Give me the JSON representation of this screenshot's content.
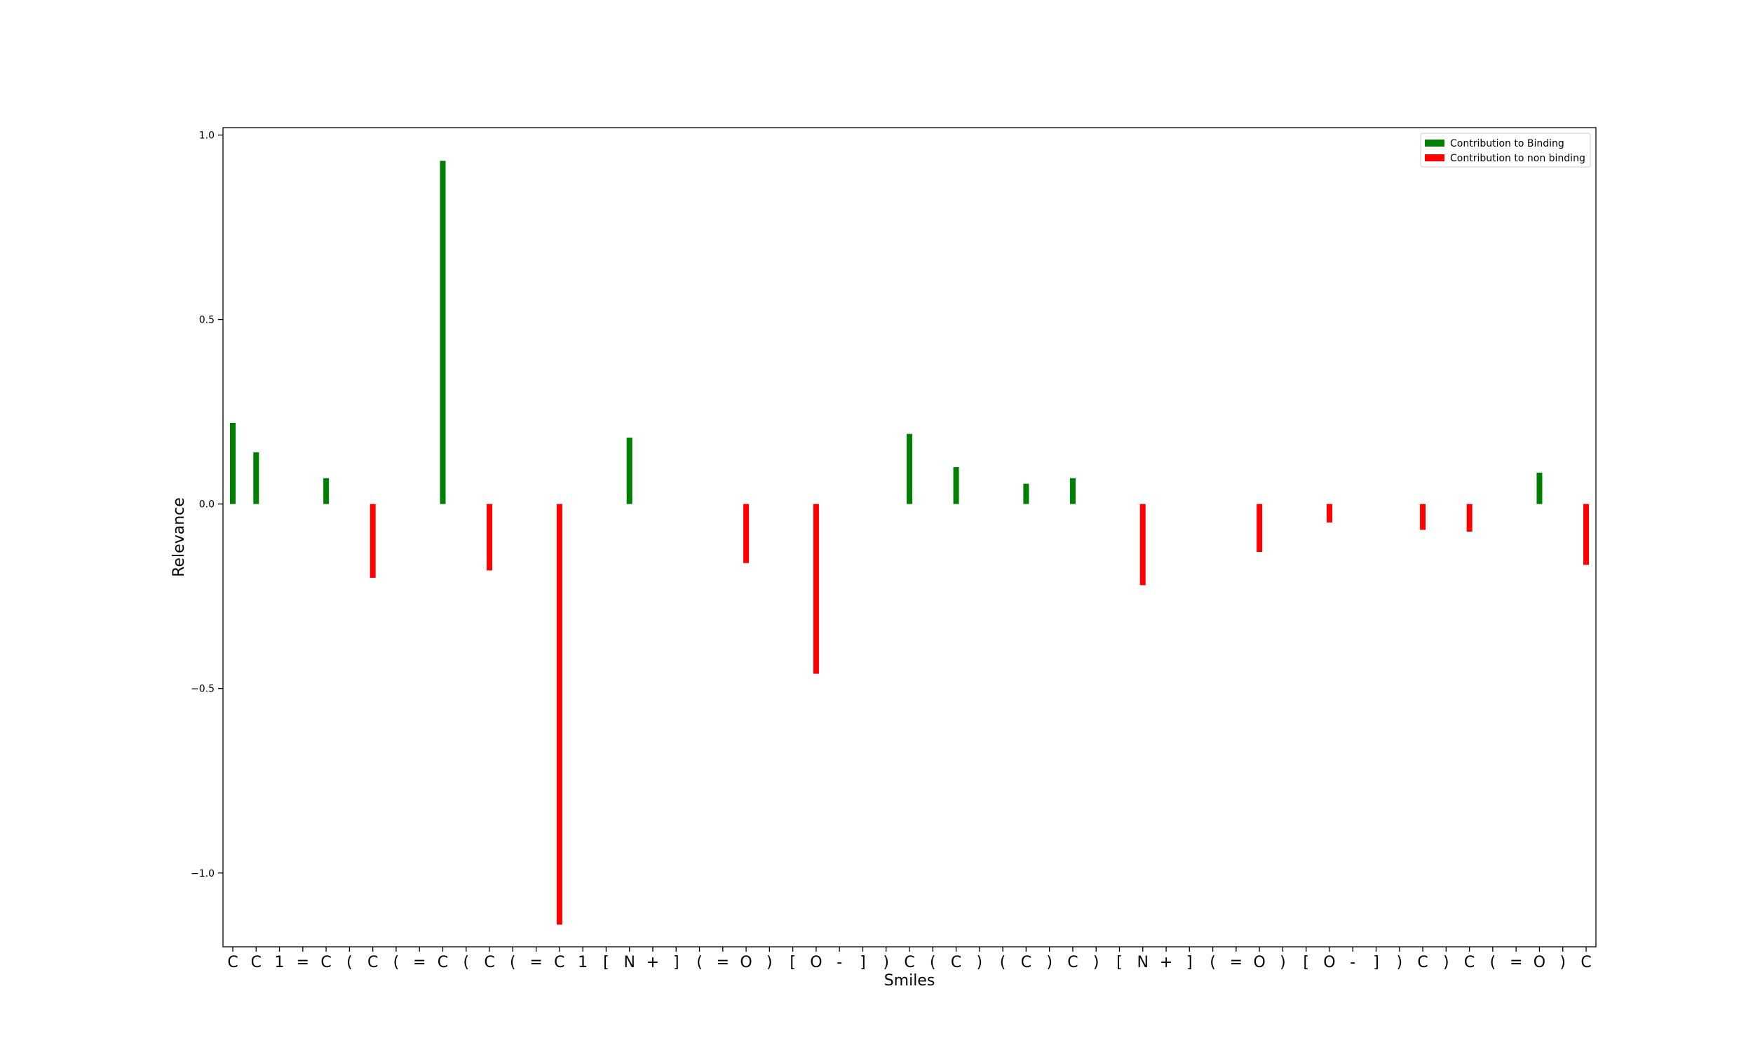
{
  "chart_data": {
    "type": "bar",
    "xlabel": "Smiles",
    "ylabel": "Relevance",
    "ylim": [
      -1.2,
      1.02
    ],
    "yticks": [
      1.0,
      0.5,
      0.0,
      -0.5,
      -1.0
    ],
    "ytick_labels": [
      "1.0",
      "0.5",
      "0.0",
      "−0.5",
      "−1.0"
    ],
    "categories": [
      "C",
      "C",
      "1",
      "=",
      "C",
      "(",
      "C",
      "(",
      "=",
      "C",
      "(",
      "C",
      "(",
      "=",
      "C",
      "1",
      "[",
      "N",
      "+",
      "]",
      "(",
      "=",
      "O",
      ")",
      "[",
      "O",
      "-",
      "]",
      ")",
      "C",
      "(",
      "C",
      ")",
      "(",
      "C",
      ")",
      "C",
      ")",
      "[",
      "N",
      "+",
      "]",
      "(",
      "=",
      "O",
      ")",
      "[",
      "O",
      "-",
      "]",
      ")",
      "C",
      ")",
      "C",
      "(",
      "=",
      "O",
      ")",
      "C"
    ],
    "values": [
      0.22,
      0.14,
      0,
      0,
      0.07,
      0,
      -0.2,
      0,
      0,
      0.93,
      0,
      -0.18,
      0,
      0,
      -1.14,
      0,
      0,
      0.18,
      0,
      0,
      0,
      0,
      -0.16,
      0,
      0,
      -0.46,
      0,
      0,
      0,
      0.19,
      0,
      0.1,
      0,
      0,
      0.055,
      0,
      0.07,
      0,
      0,
      -0.22,
      0,
      0,
      0,
      0,
      -0.13,
      0,
      0,
      -0.05,
      0,
      0,
      0,
      -0.07,
      0,
      -0.075,
      0,
      0,
      0.085,
      0,
      -0.165
    ],
    "series": [
      {
        "name": "Contribution to Binding",
        "color": "#008000"
      },
      {
        "name": "Contribution to non binding",
        "color": "#ff0000"
      }
    ],
    "legend_position": "top-right",
    "grid": false
  }
}
